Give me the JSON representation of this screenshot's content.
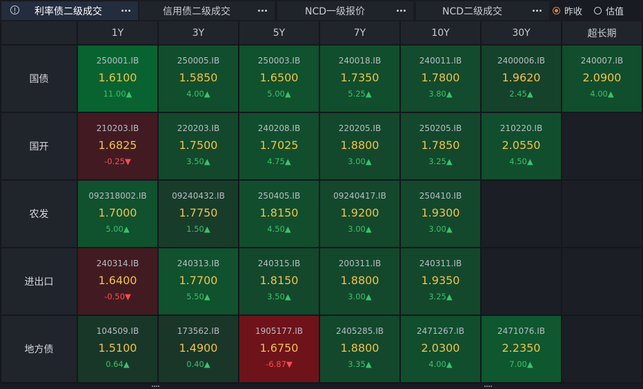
{
  "tabs": [
    {
      "label": "利率债二级成交",
      "active": true
    },
    {
      "label": "信用债二级成交",
      "active": false
    },
    {
      "label": "NCD一级报价",
      "active": false
    },
    {
      "label": "NCD二级成交",
      "active": false
    }
  ],
  "price_mode": {
    "options": [
      {
        "label": "昨收",
        "selected": true
      },
      {
        "label": "估值",
        "selected": false
      }
    ]
  },
  "columns": [
    "1Y",
    "3Y",
    "5Y",
    "7Y",
    "10Y",
    "30Y",
    "超长期"
  ],
  "rows": [
    {
      "label": "国债",
      "cells": [
        {
          "code": "250001.IB",
          "price": "1.6100",
          "change": "11.00▲",
          "dir": "up",
          "intensity": 0.85
        },
        {
          "code": "250005.IB",
          "price": "1.5850",
          "change": "4.00▲",
          "dir": "up",
          "intensity": 0.5
        },
        {
          "code": "250003.IB",
          "price": "1.6500",
          "change": "5.00▲",
          "dir": "up",
          "intensity": 0.55
        },
        {
          "code": "240018.IB",
          "price": "1.7350",
          "change": "5.25▲",
          "dir": "up",
          "intensity": 0.5
        },
        {
          "code": "240011.IB",
          "price": "1.7800",
          "change": "3.80▲",
          "dir": "up",
          "intensity": 0.45
        },
        {
          "code": "2400006.IB",
          "price": "1.9620",
          "change": "2.45▲",
          "dir": "up",
          "intensity": 0.3
        },
        {
          "code": "240007.IB",
          "price": "2.0900",
          "change": "4.00▲",
          "dir": "up",
          "intensity": 0.5
        }
      ]
    },
    {
      "label": "国开",
      "cells": [
        {
          "code": "210203.IB",
          "price": "1.6825",
          "change": "-0.25▼",
          "dir": "dn",
          "intensity": 0.25
        },
        {
          "code": "220203.IB",
          "price": "1.7500",
          "change": "3.50▲",
          "dir": "up",
          "intensity": 0.4
        },
        {
          "code": "240208.IB",
          "price": "1.7025",
          "change": "4.75▲",
          "dir": "up",
          "intensity": 0.5
        },
        {
          "code": "220205.IB",
          "price": "1.8800",
          "change": "3.00▲",
          "dir": "up",
          "intensity": 0.4
        },
        {
          "code": "250205.IB",
          "price": "1.7850",
          "change": "3.25▲",
          "dir": "up",
          "intensity": 0.4
        },
        {
          "code": "210220.IB",
          "price": "2.0550",
          "change": "4.50▲",
          "dir": "up",
          "intensity": 0.5
        },
        null
      ]
    },
    {
      "label": "农发",
      "cells": [
        {
          "code": "092318002.IB",
          "price": "1.7000",
          "change": "5.00▲",
          "dir": "up",
          "intensity": 0.55
        },
        {
          "code": "09240432.IB",
          "price": "1.7750",
          "change": "1.50▲",
          "dir": "up",
          "intensity": 0.2
        },
        {
          "code": "250405.IB",
          "price": "1.8150",
          "change": "4.50▲",
          "dir": "up",
          "intensity": 0.5
        },
        {
          "code": "09240417.IB",
          "price": "1.9200",
          "change": "3.00▲",
          "dir": "up",
          "intensity": 0.4
        },
        {
          "code": "250410.IB",
          "price": "1.9300",
          "change": "3.00▲",
          "dir": "up",
          "intensity": 0.4
        },
        null,
        null
      ]
    },
    {
      "label": "进出口",
      "cells": [
        {
          "code": "240314.IB",
          "price": "1.6400",
          "change": "-0.50▼",
          "dir": "dn",
          "intensity": 0.25
        },
        {
          "code": "240313.IB",
          "price": "1.7700",
          "change": "5.50▲",
          "dir": "up",
          "intensity": 0.55
        },
        {
          "code": "240315.IB",
          "price": "1.8150",
          "change": "3.50▲",
          "dir": "up",
          "intensity": 0.4
        },
        {
          "code": "200311.IB",
          "price": "1.8800",
          "change": "3.00▲",
          "dir": "up",
          "intensity": 0.4
        },
        {
          "code": "240311.IB",
          "price": "1.9350",
          "change": "3.25▲",
          "dir": "up",
          "intensity": 0.4
        },
        null,
        null
      ]
    },
    {
      "label": "地方债",
      "cells": [
        {
          "code": "104509.IB",
          "price": "1.5100",
          "change": "0.64▲",
          "dir": "up",
          "intensity": 0.12
        },
        {
          "code": "173562.IB",
          "price": "1.4900",
          "change": "0.40▲",
          "dir": "up",
          "intensity": 0.1
        },
        {
          "code": "1905177.IB",
          "price": "1.6750",
          "change": "-6.87▼",
          "dir": "dn",
          "intensity": 0.9
        },
        {
          "code": "2405285.IB",
          "price": "1.8800",
          "change": "3.35▲",
          "dir": "up",
          "intensity": 0.4
        },
        {
          "code": "2471267.IB",
          "price": "2.0300",
          "change": "4.00▲",
          "dir": "up",
          "intensity": 0.5
        },
        {
          "code": "2471076.IB",
          "price": "2.2350",
          "change": "7.00▲",
          "dir": "up",
          "intensity": 0.65
        },
        null
      ]
    }
  ]
}
